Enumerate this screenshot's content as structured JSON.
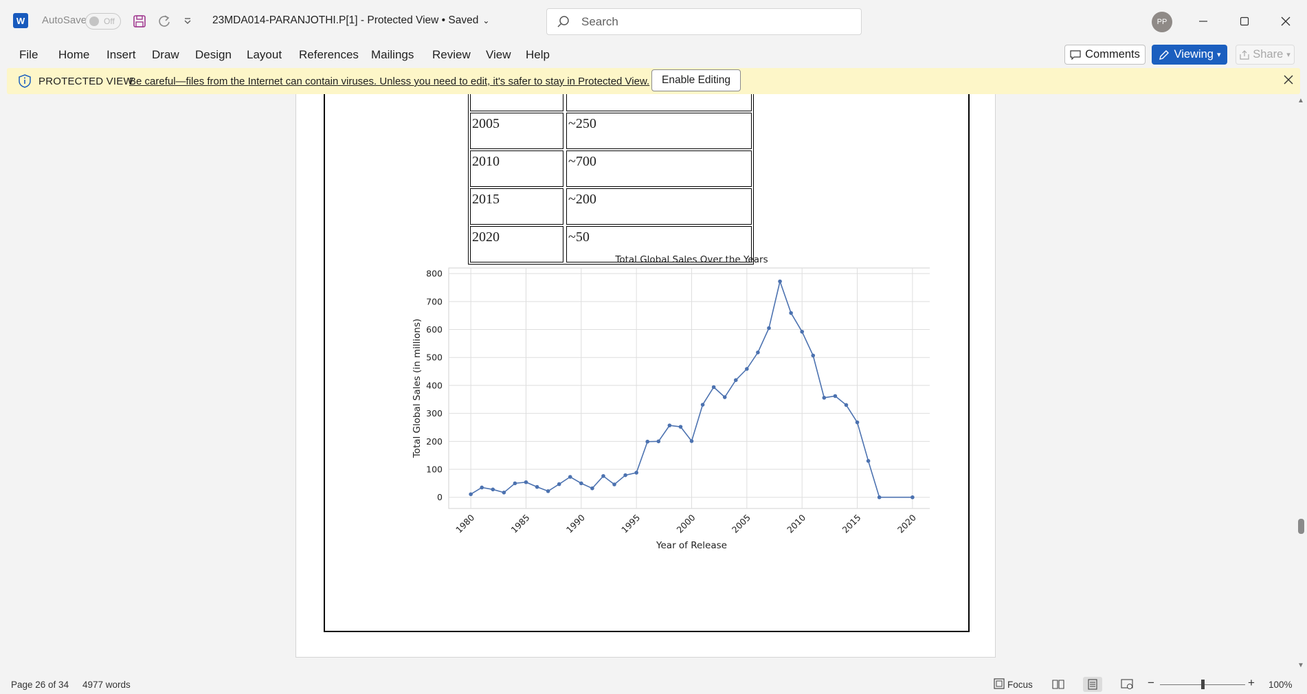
{
  "titlebar": {
    "app_icon": "W",
    "autosave_label": "AutoSave",
    "autosave_state": "Off",
    "document_title": "23MDA014-PARANJOTHI.P[1]  -  Protected View • Saved",
    "search_placeholder": "Search",
    "user_initials": "PP"
  },
  "ribbon": {
    "tabs": [
      "File",
      "Home",
      "Insert",
      "Draw",
      "Design",
      "Layout",
      "References",
      "Mailings",
      "Review",
      "View",
      "Help"
    ],
    "comments_label": "Comments",
    "viewing_label": "Viewing",
    "share_label": "Share",
    "accent_color": "#1b5fbf"
  },
  "protected_view": {
    "label": "PROTECTED VIEW",
    "message": "Be careful—files from the Internet can contain viruses. Unless you need to edit, it's safer to stay in Protected View.",
    "button": "Enable Editing",
    "bar_color": "#fdf6c8"
  },
  "document": {
    "table_rows": [
      [
        "",
        ""
      ],
      [
        "2005",
        "~250"
      ],
      [
        "2010",
        "~700"
      ],
      [
        "2015",
        "~200"
      ],
      [
        "2020",
        "~50"
      ]
    ]
  },
  "chart_data": {
    "type": "line",
    "title": "Total Global Sales Over the Years",
    "xlabel": "Year of Release",
    "ylabel": "Total Global Sales (in millions)",
    "xlim": [
      1978,
      2022
    ],
    "ylim": [
      -40,
      820
    ],
    "xticks": [
      1980,
      1985,
      1990,
      1995,
      2000,
      2005,
      2010,
      2015,
      2020
    ],
    "yticks": [
      0,
      100,
      200,
      300,
      400,
      500,
      600,
      700,
      800
    ],
    "grid": true,
    "marker": "circle",
    "color": "#4c72b0",
    "x": [
      1980,
      1981,
      1982,
      1983,
      1984,
      1985,
      1986,
      1987,
      1988,
      1989,
      1990,
      1991,
      1992,
      1993,
      1994,
      1995,
      1996,
      1997,
      1998,
      1999,
      2000,
      2001,
      2002,
      2003,
      2004,
      2005,
      2006,
      2007,
      2008,
      2009,
      2010,
      2011,
      2012,
      2013,
      2014,
      2015,
      2016,
      2017,
      2020
    ],
    "y": [
      11,
      35,
      28,
      17,
      50,
      54,
      37,
      22,
      47,
      73,
      50,
      32,
      76,
      46,
      79,
      88,
      199,
      200,
      257,
      252,
      201,
      331,
      394,
      358,
      419,
      459,
      518,
      605,
      772,
      659,
      592,
      507,
      356,
      362,
      330,
      268,
      130,
      0,
      0
    ]
  },
  "statusbar": {
    "page": "Page 26 of 34",
    "words": "4977 words",
    "focus": "Focus",
    "zoom": "100%"
  }
}
